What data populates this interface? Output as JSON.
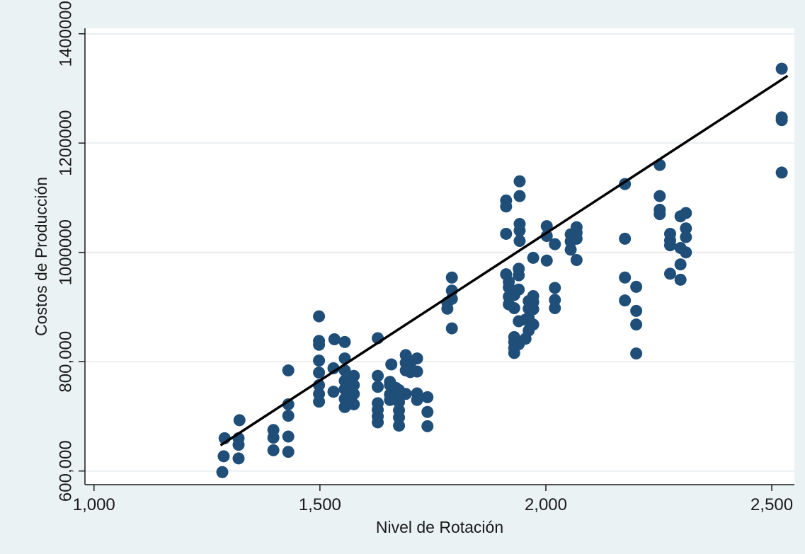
{
  "chart_data": {
    "type": "scatter",
    "xlabel": "Nivel de Rotación",
    "ylabel": "Costos de Producción",
    "xlim": [
      980,
      2550
    ],
    "ylim": [
      575000,
      1410000
    ],
    "x_ticks": [
      1000,
      1500,
      2000,
      2500
    ],
    "x_tick_labels": [
      "1,000",
      "1,500",
      "2,000",
      "2,500"
    ],
    "y_ticks": [
      600000,
      800000,
      1000000,
      1200000,
      1400000
    ],
    "y_tick_labels": [
      "600,000",
      "800,000",
      "1000000",
      "1200000",
      "1400000"
    ],
    "grid": "horizontal",
    "colors": {
      "background": "#eaf2f3",
      "plot_area": "#ffffff",
      "grid": "#e9eef0",
      "points": "#1f4e79",
      "fit_line": "#000000"
    },
    "fit_line": {
      "x": [
        1280,
        2535
      ],
      "y": [
        647000,
        1323000
      ]
    },
    "points": [
      {
        "x": 1284,
        "y": 598000
      },
      {
        "x": 1287,
        "y": 627000
      },
      {
        "x": 1289,
        "y": 660000
      },
      {
        "x": 1320,
        "y": 623000
      },
      {
        "x": 1320,
        "y": 648000
      },
      {
        "x": 1320,
        "y": 660000
      },
      {
        "x": 1322,
        "y": 693000
      },
      {
        "x": 1397,
        "y": 638000
      },
      {
        "x": 1397,
        "y": 661000
      },
      {
        "x": 1397,
        "y": 675000
      },
      {
        "x": 1430,
        "y": 635000
      },
      {
        "x": 1430,
        "y": 663000
      },
      {
        "x": 1430,
        "y": 701000
      },
      {
        "x": 1430,
        "y": 722000
      },
      {
        "x": 1430,
        "y": 784000
      },
      {
        "x": 1498,
        "y": 727000
      },
      {
        "x": 1498,
        "y": 741000
      },
      {
        "x": 1498,
        "y": 757000
      },
      {
        "x": 1498,
        "y": 780000
      },
      {
        "x": 1498,
        "y": 802000
      },
      {
        "x": 1498,
        "y": 831000
      },
      {
        "x": 1498,
        "y": 838000
      },
      {
        "x": 1498,
        "y": 883000
      },
      {
        "x": 1530,
        "y": 745000
      },
      {
        "x": 1530,
        "y": 788000
      },
      {
        "x": 1532,
        "y": 841000
      },
      {
        "x": 1555,
        "y": 717000
      },
      {
        "x": 1555,
        "y": 732000
      },
      {
        "x": 1555,
        "y": 750000
      },
      {
        "x": 1555,
        "y": 765000
      },
      {
        "x": 1555,
        "y": 784000
      },
      {
        "x": 1555,
        "y": 806000
      },
      {
        "x": 1555,
        "y": 836000
      },
      {
        "x": 1575,
        "y": 722000
      },
      {
        "x": 1575,
        "y": 741000
      },
      {
        "x": 1575,
        "y": 757000
      },
      {
        "x": 1575,
        "y": 774000
      },
      {
        "x": 1628,
        "y": 689000
      },
      {
        "x": 1628,
        "y": 700000
      },
      {
        "x": 1628,
        "y": 712000
      },
      {
        "x": 1628,
        "y": 724000
      },
      {
        "x": 1628,
        "y": 754000
      },
      {
        "x": 1628,
        "y": 774000
      },
      {
        "x": 1628,
        "y": 843000
      },
      {
        "x": 1655,
        "y": 730000
      },
      {
        "x": 1655,
        "y": 740000
      },
      {
        "x": 1655,
        "y": 757000
      },
      {
        "x": 1655,
        "y": 763000
      },
      {
        "x": 1658,
        "y": 795000
      },
      {
        "x": 1668,
        "y": 740000
      },
      {
        "x": 1668,
        "y": 752000
      },
      {
        "x": 1675,
        "y": 683000
      },
      {
        "x": 1675,
        "y": 698000
      },
      {
        "x": 1675,
        "y": 711000
      },
      {
        "x": 1675,
        "y": 726000
      },
      {
        "x": 1675,
        "y": 748000
      },
      {
        "x": 1690,
        "y": 741000
      },
      {
        "x": 1690,
        "y": 784000
      },
      {
        "x": 1690,
        "y": 798000
      },
      {
        "x": 1690,
        "y": 812000
      },
      {
        "x": 1700,
        "y": 781000
      },
      {
        "x": 1700,
        "y": 797000
      },
      {
        "x": 1715,
        "y": 730000
      },
      {
        "x": 1715,
        "y": 742000
      },
      {
        "x": 1715,
        "y": 782000
      },
      {
        "x": 1715,
        "y": 806000
      },
      {
        "x": 1738,
        "y": 682000
      },
      {
        "x": 1738,
        "y": 708000
      },
      {
        "x": 1738,
        "y": 735000
      },
      {
        "x": 1782,
        "y": 897000
      },
      {
        "x": 1782,
        "y": 908000
      },
      {
        "x": 1792,
        "y": 861000
      },
      {
        "x": 1792,
        "y": 915000
      },
      {
        "x": 1792,
        "y": 930000
      },
      {
        "x": 1792,
        "y": 954000
      },
      {
        "x": 1912,
        "y": 960000
      },
      {
        "x": 1912,
        "y": 1034000
      },
      {
        "x": 1912,
        "y": 1084000
      },
      {
        "x": 1912,
        "y": 1095000
      },
      {
        "x": 1918,
        "y": 905000
      },
      {
        "x": 1918,
        "y": 919000
      },
      {
        "x": 1918,
        "y": 936000
      },
      {
        "x": 1918,
        "y": 946000
      },
      {
        "x": 1930,
        "y": 816000
      },
      {
        "x": 1930,
        "y": 825000
      },
      {
        "x": 1930,
        "y": 836000
      },
      {
        "x": 1930,
        "y": 845000
      },
      {
        "x": 1930,
        "y": 898000
      },
      {
        "x": 1930,
        "y": 922000
      },
      {
        "x": 1940,
        "y": 832000
      },
      {
        "x": 1940,
        "y": 874000
      },
      {
        "x": 1940,
        "y": 932000
      },
      {
        "x": 1940,
        "y": 958000
      },
      {
        "x": 1940,
        "y": 970000
      },
      {
        "x": 1942,
        "y": 1021000
      },
      {
        "x": 1942,
        "y": 1040000
      },
      {
        "x": 1942,
        "y": 1052000
      },
      {
        "x": 1942,
        "y": 1103000
      },
      {
        "x": 1942,
        "y": 1130000
      },
      {
        "x": 1955,
        "y": 842000
      },
      {
        "x": 1955,
        "y": 877000
      },
      {
        "x": 1962,
        "y": 857000
      },
      {
        "x": 1962,
        "y": 880000
      },
      {
        "x": 1962,
        "y": 897000
      },
      {
        "x": 1962,
        "y": 911000
      },
      {
        "x": 1972,
        "y": 868000
      },
      {
        "x": 1972,
        "y": 896000
      },
      {
        "x": 1972,
        "y": 909000
      },
      {
        "x": 1972,
        "y": 920000
      },
      {
        "x": 1972,
        "y": 990000
      },
      {
        "x": 2002,
        "y": 985000
      },
      {
        "x": 2002,
        "y": 1030000
      },
      {
        "x": 2002,
        "y": 1048000
      },
      {
        "x": 2020,
        "y": 898000
      },
      {
        "x": 2020,
        "y": 913000
      },
      {
        "x": 2020,
        "y": 935000
      },
      {
        "x": 2020,
        "y": 1015000
      },
      {
        "x": 2055,
        "y": 1005000
      },
      {
        "x": 2055,
        "y": 1020000
      },
      {
        "x": 2055,
        "y": 1033000
      },
      {
        "x": 2068,
        "y": 986000
      },
      {
        "x": 2068,
        "y": 1025000
      },
      {
        "x": 2068,
        "y": 1036000
      },
      {
        "x": 2068,
        "y": 1046000
      },
      {
        "x": 2175,
        "y": 912000
      },
      {
        "x": 2175,
        "y": 954000
      },
      {
        "x": 2175,
        "y": 1025000
      },
      {
        "x": 2175,
        "y": 1125000
      },
      {
        "x": 2200,
        "y": 815000
      },
      {
        "x": 2200,
        "y": 868000
      },
      {
        "x": 2200,
        "y": 893000
      },
      {
        "x": 2200,
        "y": 937000
      },
      {
        "x": 2252,
        "y": 1070000
      },
      {
        "x": 2252,
        "y": 1078000
      },
      {
        "x": 2252,
        "y": 1103000
      },
      {
        "x": 2252,
        "y": 1160000
      },
      {
        "x": 2275,
        "y": 961000
      },
      {
        "x": 2275,
        "y": 1013000
      },
      {
        "x": 2275,
        "y": 1022000
      },
      {
        "x": 2275,
        "y": 1034000
      },
      {
        "x": 2298,
        "y": 950000
      },
      {
        "x": 2298,
        "y": 978000
      },
      {
        "x": 2298,
        "y": 1008000
      },
      {
        "x": 2298,
        "y": 1066000
      },
      {
        "x": 2310,
        "y": 1000000
      },
      {
        "x": 2310,
        "y": 1028000
      },
      {
        "x": 2310,
        "y": 1044000
      },
      {
        "x": 2310,
        "y": 1072000
      },
      {
        "x": 2522,
        "y": 1146000
      },
      {
        "x": 2522,
        "y": 1242000
      },
      {
        "x": 2522,
        "y": 1247000
      },
      {
        "x": 2522,
        "y": 1336000
      }
    ]
  }
}
